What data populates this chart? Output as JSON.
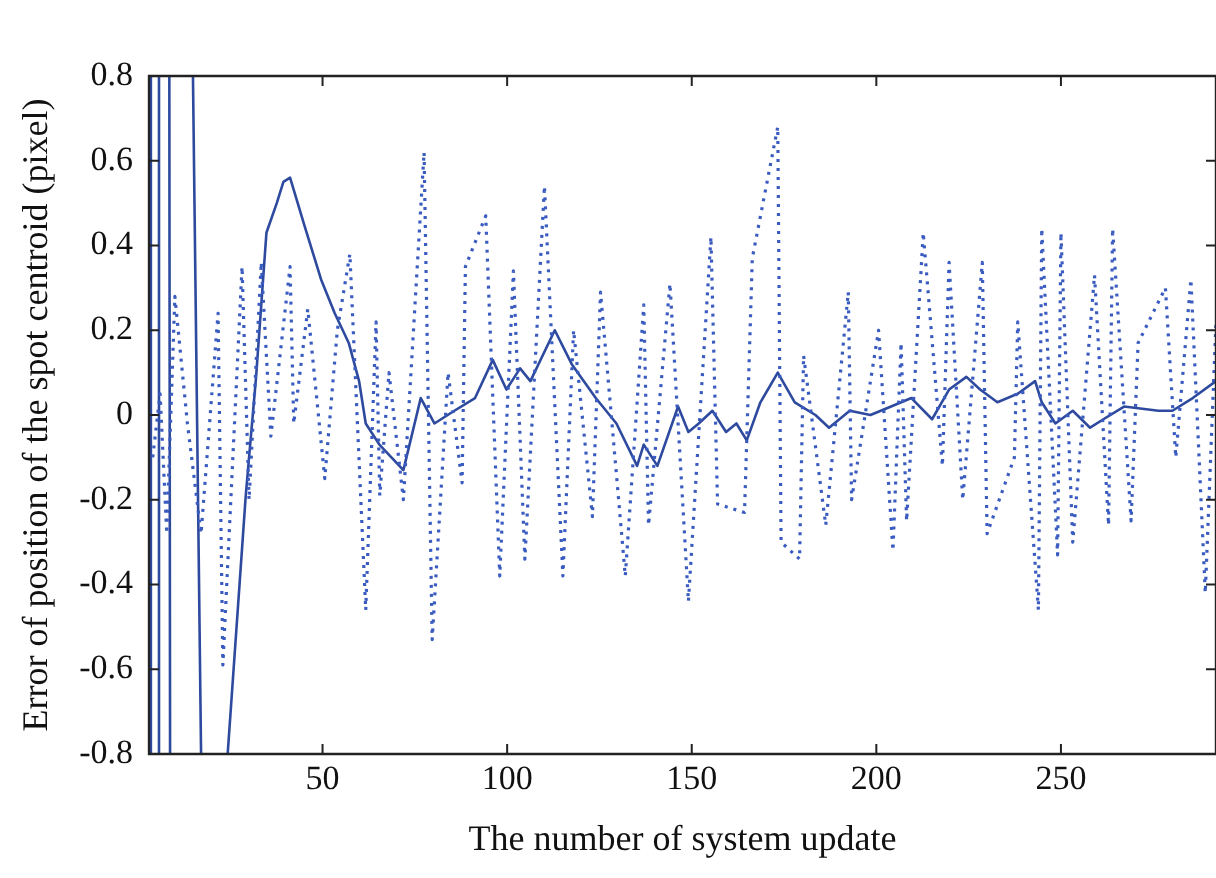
{
  "chart_data": {
    "type": "line",
    "xlabel": "The number of system update",
    "ylabel": "Error of position of the spot centroid (pixel)",
    "xlim": [
      3,
      292
    ],
    "xticks": [
      50,
      100,
      150,
      200,
      250
    ],
    "ylim": [
      -0.8,
      0.8
    ],
    "yticks": [
      -0.8,
      -0.6,
      -0.4,
      -0.2,
      0,
      0.2,
      0.4,
      0.6,
      0.8
    ],
    "grid": false,
    "legend": false,
    "marker": "none",
    "series": [
      {
        "color": "#3a5bbf",
        "line_style": "dotted",
        "x": [
          4,
          6,
          7.8,
          10,
          13.4,
          17.1,
          21.7,
          23,
          28.2,
          30.1,
          33.4,
          36,
          41.2,
          42.2,
          46,
          50.6,
          54,
          57.4,
          61.7,
          64.5,
          65.5,
          68,
          71.9,
          77.5,
          79.7,
          84,
          87.8,
          88.7,
          94.2,
          98,
          101.7,
          104.8,
          110.1,
          115.1,
          118,
          123.1,
          125.3,
          132,
          137,
          138.3,
          144.1,
          149.1,
          155.2,
          157,
          164.3,
          166.4,
          173.3,
          174.2,
          179.2,
          180.3,
          186.3,
          192.4,
          193.3,
          200.6,
          204.5,
          206.7,
          208.2,
          212.7,
          217.9,
          219.7,
          223.4,
          228.7,
          230,
          237.4,
          238.3,
          243.9,
          244.8,
          249.1,
          250,
          253.2,
          259.1,
          262.9,
          264,
          269,
          270.9,
          278.3,
          281.1,
          285.2,
          289.1,
          292
        ],
        "values": [
          -0.1,
          0.05,
          -0.28,
          0.28,
          -0.02,
          -0.28,
          0.24,
          -0.59,
          0.35,
          -0.2,
          0.36,
          -0.05,
          0.35,
          -0.02,
          0.25,
          -0.15,
          0.2,
          0.38,
          -0.46,
          0.22,
          -0.19,
          0.1,
          -0.2,
          0.62,
          -0.53,
          0.1,
          -0.16,
          0.35,
          0.47,
          -0.38,
          0.34,
          -0.34,
          0.54,
          -0.38,
          0.2,
          -0.24,
          0.29,
          -0.38,
          0.26,
          -0.26,
          0.31,
          -0.44,
          0.42,
          -0.21,
          -0.23,
          0.37,
          0.68,
          -0.3,
          -0.34,
          0.14,
          -0.26,
          0.29,
          -0.2,
          0.2,
          -0.32,
          0.17,
          -0.25,
          0.43,
          -0.12,
          0.36,
          -0.2,
          0.36,
          -0.28,
          -0.1,
          0.22,
          -0.46,
          0.44,
          -0.33,
          0.43,
          -0.3,
          0.33,
          -0.26,
          0.44,
          -0.25,
          0.17,
          0.3,
          -0.1,
          0.32,
          -0.42,
          0.22
        ]
      },
      {
        "color": "#2e4a9e",
        "line_style": "solid",
        "x": [
          3.3,
          3.5,
          4.5,
          5.5,
          5.7,
          7,
          8.5,
          8.7,
          12,
          14.9,
          17.1,
          20,
          24.3,
          29.2,
          32,
          34.8,
          37.6,
          39.4,
          41.2,
          45,
          49.6,
          53.3,
          57.1,
          59.9,
          61.7,
          65.4,
          71.9,
          76.6,
          80.3,
          85.7,
          91.3,
          96.1,
          99.8,
          103.5,
          106.3,
          112.9,
          117.5,
          124,
          129.6,
          135.2,
          137,
          140.7,
          146.3,
          149.1,
          151.9,
          155.6,
          159.3,
          162.1,
          164.9,
          168.6,
          173.3,
          177.9,
          183.5,
          187.2,
          192.8,
          198.4,
          204,
          209.5,
          215.1,
          219.7,
          224.4,
          228.1,
          232.8,
          238.3,
          243,
          244.8,
          248.5,
          253.2,
          257.9,
          261.5,
          267.1,
          276.4,
          280.2,
          285.7,
          292
        ],
        "values": [
          0.8,
          -0.8,
          null,
          -0.8,
          0.8,
          null,
          0.8,
          -0.8,
          null,
          0.8,
          -0.8,
          null,
          -0.8,
          -0.19,
          0.09,
          0.43,
          0.5,
          0.55,
          0.56,
          0.45,
          0.32,
          0.24,
          0.17,
          0.08,
          -0.02,
          -0.07,
          -0.13,
          0.04,
          -0.02,
          0.01,
          0.04,
          0.13,
          0.06,
          0.11,
          0.08,
          0.2,
          0.12,
          0.04,
          -0.02,
          -0.12,
          -0.07,
          -0.12,
          0.02,
          -0.04,
          -0.02,
          0.01,
          -0.04,
          -0.02,
          -0.06,
          0.03,
          0.1,
          0.03,
          0,
          -0.03,
          0.01,
          0,
          0.02,
          0.04,
          -0.01,
          0.06,
          0.09,
          0.06,
          0.03,
          0.05,
          0.08,
          0.03,
          -0.02,
          0.01,
          -0.03,
          -0.01,
          0.02,
          0.01,
          0.01,
          0.04,
          0.08
        ]
      }
    ]
  }
}
